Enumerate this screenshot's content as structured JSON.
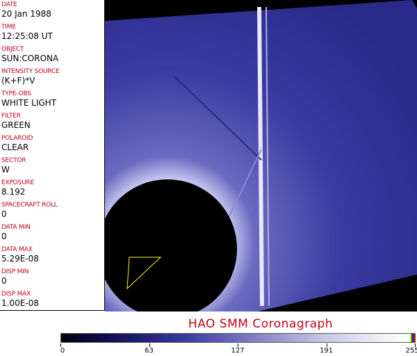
{
  "header_fields": [
    {
      "label": "DATE",
      "value": "20 Jan 1988"
    },
    {
      "label": "TIME",
      "value": "12:25:08 UT"
    },
    {
      "label": "OBJECT",
      "value": "SUN:CORONA"
    },
    {
      "label": "INTENSITY SOURCE",
      "value": "(K+F)*V"
    },
    {
      "label": "TYPE-OBS",
      "value": "WHITE LIGHT"
    },
    {
      "label": "FILTER",
      "value": "GREEN"
    },
    {
      "label": "POLAROID",
      "value": "CLEAR"
    },
    {
      "label": "SECTOR",
      "value": "W"
    },
    {
      "label": "EXPOSURE",
      "value": "8.192"
    },
    {
      "label": "SPACECRAFT ROLL",
      "value": "0"
    },
    {
      "label": "DATA MIN",
      "value": "0"
    },
    {
      "label": "DATA MAX",
      "value": "5.29E-08"
    },
    {
      "label": "DISP MIN",
      "value": "0"
    },
    {
      "label": "DISP MAX",
      "value": "1.00E-08"
    }
  ],
  "title": "HAO   SMM  Coronagraph",
  "colorbar": {
    "ticks": [
      "0",
      "63",
      "127",
      "191",
      "255"
    ],
    "colors": {
      "low": "#000010",
      "mid": "#3a3aa0",
      "high": "#ffffff"
    }
  }
}
